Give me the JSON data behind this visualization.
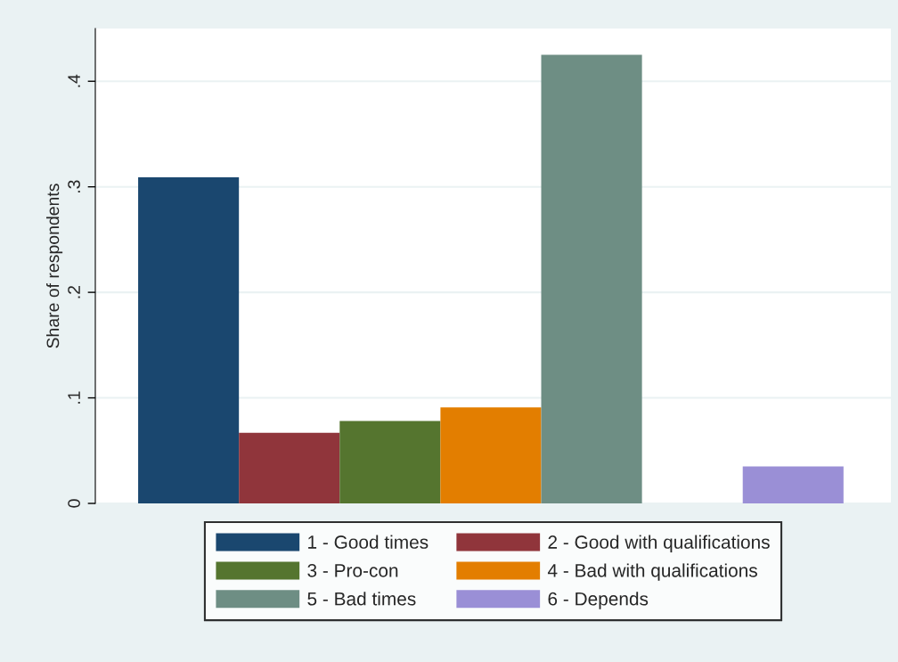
{
  "chart_data": {
    "type": "bar",
    "ylabel": "Share of respondents",
    "categories": [
      null,
      null,
      null,
      null,
      null,
      null,
      null
    ],
    "series": [
      {
        "name": "1 - Good times",
        "color": "#1a476f",
        "values": [
          0.309,
          null,
          null,
          null,
          null,
          null,
          null
        ]
      },
      {
        "name": "2 - Good with qualifications",
        "color": "#90353b",
        "values": [
          null,
          0.067,
          null,
          null,
          null,
          null,
          null
        ]
      },
      {
        "name": "3 - Pro-con",
        "color": "#55752f",
        "values": [
          null,
          null,
          0.078,
          null,
          null,
          null,
          null
        ]
      },
      {
        "name": "4 - Bad with qualifications",
        "color": "#e37e00",
        "values": [
          null,
          null,
          null,
          0.091,
          null,
          null,
          null
        ]
      },
      {
        "name": "5 - Bad times",
        "color": "#6e8e84",
        "values": [
          null,
          null,
          null,
          null,
          0.425,
          null,
          null
        ]
      },
      {
        "name": "6 - Depends",
        "color": "#9a8fd6",
        "values": [
          null,
          null,
          null,
          null,
          null,
          null,
          0.035
        ]
      }
    ],
    "ylim": [
      0,
      0.45
    ],
    "yticks": [
      {
        "value": 0,
        "label": "0"
      },
      {
        "value": 0.1,
        "label": ".1"
      },
      {
        "value": 0.2,
        "label": ".2"
      },
      {
        "value": 0.3,
        "label": ".3"
      },
      {
        "value": 0.4,
        "label": ".4"
      }
    ],
    "grid": "y",
    "legend": "bottom"
  }
}
